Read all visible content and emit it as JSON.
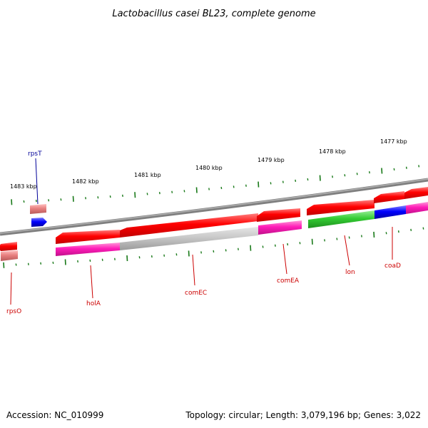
{
  "title": "Lactobacillus casei BL23, complete genome",
  "accession": "Accession: NC_010999",
  "summary": "Topology: circular; Length: 3,079,196 bp; Genes: 3,022",
  "colors": {
    "backbone": "#7f7f7f",
    "ticks": "#1a7a1a",
    "cds": "#ff0000",
    "label_red": "#cc0000",
    "label_blue": "#000099",
    "rrna_or_trna": "#0000ff",
    "magenta": "#ff1cb8",
    "grey": "#c8c8c8",
    "green": "#33cc33",
    "pink": "#e88080"
  },
  "scale_labels": [
    "1483 kbp",
    "1482 kbp",
    "1481 kbp",
    "1480 kbp",
    "1479 kbp",
    "1478 kbp",
    "1477 kbp"
  ],
  "genes": [
    {
      "name": "rpsT",
      "strand": "+",
      "label_color": "blue"
    },
    {
      "name": "rpsO",
      "strand": "-",
      "label_color": "red"
    },
    {
      "name": "holA",
      "strand": "-",
      "label_color": "red"
    },
    {
      "name": "comEC",
      "strand": "-",
      "label_color": "red"
    },
    {
      "name": "comEA",
      "strand": "-",
      "label_color": "red"
    },
    {
      "name": "lon",
      "strand": "-",
      "label_color": "red"
    },
    {
      "name": "coaD",
      "strand": "-",
      "label_color": "red"
    }
  ]
}
